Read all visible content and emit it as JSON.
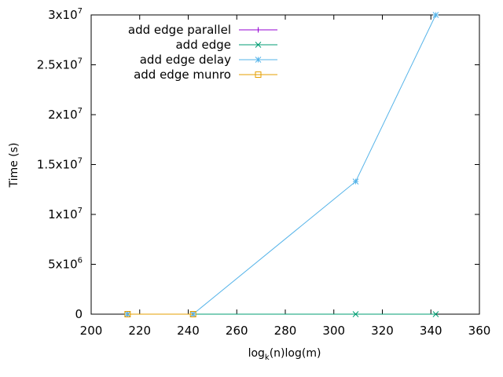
{
  "chart_data": {
    "type": "line",
    "xlabel": {
      "main": "log",
      "sub": "k",
      "rest": "(n)log(m)"
    },
    "ylabel": "Time (s)",
    "xlim": [
      200,
      360
    ],
    "ylim": [
      0,
      30000000
    ],
    "x_ticks": [
      {
        "value": 200,
        "label": "200"
      },
      {
        "value": 220,
        "label": "220"
      },
      {
        "value": 240,
        "label": "240"
      },
      {
        "value": 260,
        "label": "260"
      },
      {
        "value": 280,
        "label": "280"
      },
      {
        "value": 300,
        "label": "300"
      },
      {
        "value": 320,
        "label": "320"
      },
      {
        "value": 340,
        "label": "340"
      },
      {
        "value": 360,
        "label": "360"
      }
    ],
    "y_ticks": [
      {
        "value": 0,
        "mant": "0",
        "exp": ""
      },
      {
        "value": 5000000,
        "mant": "5x10",
        "exp": "6"
      },
      {
        "value": 10000000,
        "mant": "1x10",
        "exp": "7"
      },
      {
        "value": 15000000,
        "mant": "1.5x10",
        "exp": "7"
      },
      {
        "value": 20000000,
        "mant": "2x10",
        "exp": "7"
      },
      {
        "value": 25000000,
        "mant": "2.5x10",
        "exp": "7"
      },
      {
        "value": 30000000,
        "mant": "3x10",
        "exp": "7"
      }
    ],
    "grid": false,
    "legend_position": "top-left",
    "series": [
      {
        "name": "add edge parallel",
        "color": "#9400d3",
        "marker": "plus",
        "points": [
          [
            215,
            0
          ],
          [
            242,
            0
          ]
        ]
      },
      {
        "name": "add edge",
        "color": "#009e73",
        "marker": "x",
        "points": [
          [
            215,
            0
          ],
          [
            242,
            0
          ],
          [
            309,
            0
          ],
          [
            342,
            0
          ]
        ]
      },
      {
        "name": "add edge delay",
        "color": "#56b4e9",
        "marker": "star",
        "points": [
          [
            215,
            0
          ],
          [
            242,
            0
          ],
          [
            309,
            13300000
          ],
          [
            342,
            30000000
          ]
        ]
      },
      {
        "name": "add edge munro",
        "color": "#e69f00",
        "marker": "square",
        "points": [
          [
            215,
            0
          ],
          [
            242,
            0
          ]
        ]
      }
    ]
  }
}
